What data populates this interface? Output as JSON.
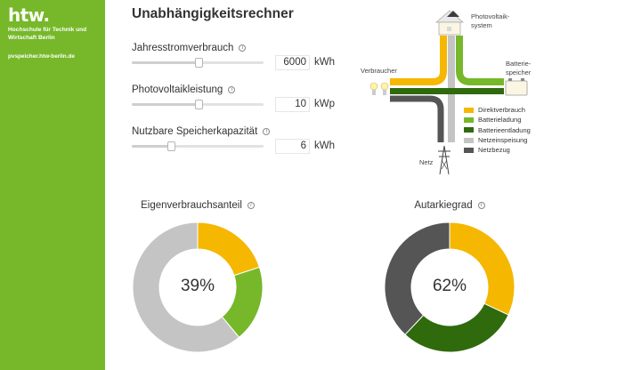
{
  "sidebar": {
    "logo": "htw.",
    "university": "Hochschule für Technik und Wirtschaft Berlin",
    "website": "pvspeicher.htw-berlin.de",
    "color": "#76b82a"
  },
  "title": "Unabhängigkeitsrechner",
  "params": [
    {
      "label": "Jahresstromverbrauch",
      "value": "6000",
      "unit": "kWh",
      "slider_fraction": 0.51,
      "info_icon": "info-icon"
    },
    {
      "label": "Photovoltaikleistung",
      "value": "10",
      "unit": "kWp",
      "slider_fraction": 0.51,
      "info_icon": "info-icon"
    },
    {
      "label": "Nutzbare Speicherkapazität",
      "value": "6",
      "unit": "kWh",
      "slider_fraction": 0.3,
      "info_icon": "info-icon"
    }
  ],
  "diagram": {
    "photovoltaic_label_1": "Photovoltaik-",
    "photovoltaic_label_2": "system",
    "consumer_label": "Verbraucher",
    "battery_label_1": "Batterie-",
    "battery_label_2": "speicher",
    "grid_label": "Netz"
  },
  "legend": [
    {
      "label": "Direktverbrauch",
      "color": "#f5b700"
    },
    {
      "label": "Batterieladung",
      "color": "#76b82a"
    },
    {
      "label": "Batterieentladung",
      "color": "#2f6a0c"
    },
    {
      "label": "Netzeinspeisung",
      "color": "#c4c4c4"
    },
    {
      "label": "Netzbezug",
      "color": "#555555"
    }
  ],
  "charts": {
    "self_consumption": {
      "title": "Eigenverbrauchsanteil",
      "center_text": "39%",
      "info_icon": "info-icon"
    },
    "autarky": {
      "title": "Autarkiegrad",
      "center_text": "62%",
      "info_icon": "info-icon"
    }
  },
  "chart_data": [
    {
      "type": "pie",
      "title": "Eigenverbrauchsanteil",
      "categories": [
        "Direktverbrauch",
        "Batterieladung",
        "Netzeinspeisung"
      ],
      "values": [
        20,
        19,
        61
      ],
      "colors": [
        "#f5b700",
        "#76b82a",
        "#c4c4c4"
      ],
      "center_label": "39%"
    },
    {
      "type": "pie",
      "title": "Autarkiegrad",
      "categories": [
        "Direktverbrauch",
        "Batterieentladung",
        "Netzbezug"
      ],
      "values": [
        32,
        30,
        38
      ],
      "colors": [
        "#f5b700",
        "#2f6a0c",
        "#555555"
      ],
      "center_label": "62%"
    }
  ]
}
